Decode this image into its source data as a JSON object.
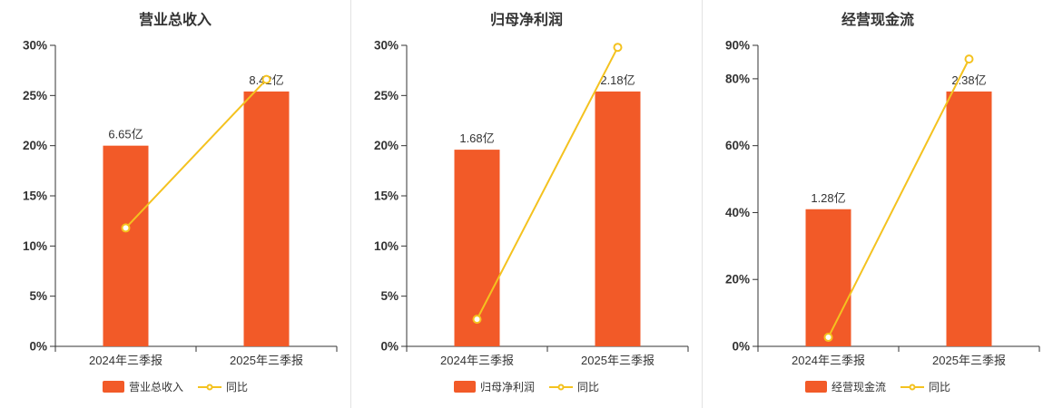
{
  "colors": {
    "bar": "#f25a28",
    "line": "#f4c21f",
    "axis": "#333333",
    "text": "#333333",
    "divider": "#e2e2e2",
    "marker_fill": "#ffffff"
  },
  "chart_data": [
    {
      "type": "bar",
      "title": "营业总收入",
      "categories": [
        "2024年三季报",
        "2025年三季报"
      ],
      "bar_series": {
        "name": "营业总收入",
        "value_labels": [
          "6.65亿",
          "8.42亿"
        ],
        "bar_heights_axis_pct": [
          20.0,
          25.4
        ]
      },
      "line_series": {
        "name": "同比",
        "values_pct": [
          11.8,
          26.6
        ]
      },
      "ylim": [
        0,
        30
      ],
      "yticks": [
        "0%",
        "5%",
        "10%",
        "15%",
        "20%",
        "25%",
        "30%"
      ],
      "ytick_values": [
        0,
        5,
        10,
        15,
        20,
        25,
        30
      ],
      "grid": false,
      "legend_position": "bottom"
    },
    {
      "type": "bar",
      "title": "归母净利润",
      "categories": [
        "2024年三季报",
        "2025年三季报"
      ],
      "bar_series": {
        "name": "归母净利润",
        "value_labels": [
          "1.68亿",
          "2.18亿"
        ],
        "bar_heights_axis_pct": [
          19.6,
          25.4
        ]
      },
      "line_series": {
        "name": "同比",
        "values_pct": [
          2.7,
          29.8
        ]
      },
      "ylim": [
        0,
        30
      ],
      "yticks": [
        "0%",
        "5%",
        "10%",
        "15%",
        "20%",
        "25%",
        "30%"
      ],
      "ytick_values": [
        0,
        5,
        10,
        15,
        20,
        25,
        30
      ],
      "grid": false,
      "legend_position": "bottom"
    },
    {
      "type": "bar",
      "title": "经营现金流",
      "categories": [
        "2024年三季报",
        "2025年三季报"
      ],
      "bar_series": {
        "name": "经营现金流",
        "value_labels": [
          "1.28亿",
          "2.38亿"
        ],
        "bar_heights_axis_pct": [
          41.0,
          76.2
        ]
      },
      "line_series": {
        "name": "同比",
        "values_pct": [
          2.7,
          85.9
        ]
      },
      "ylim": [
        0,
        90
      ],
      "yticks": [
        "0%",
        "20%",
        "40%",
        "60%",
        "80%",
        "90%"
      ],
      "ytick_values": [
        0,
        20,
        40,
        60,
        80,
        90
      ],
      "grid": false,
      "legend_position": "bottom"
    }
  ]
}
